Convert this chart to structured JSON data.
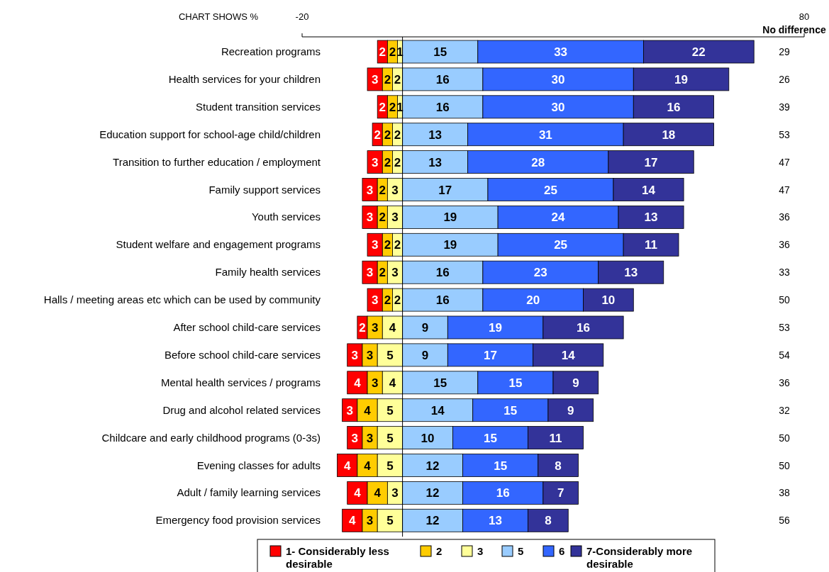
{
  "chart_data": {
    "type": "bar",
    "orientation": "horizontal",
    "data_labels": true,
    "legend": "bottom",
    "grid": false,
    "categories": [
      "Recreation programs",
      "Health services for your children",
      "Student transition services",
      "Education support for school-age child/children",
      "Transition to further education / employment",
      "Family support services",
      "Youth services",
      "Student welfare and engagement programs",
      "Family health services",
      "Halls / meeting areas etc which can be used by community",
      "After school child-care services",
      "Before school child-care services",
      "Mental health services / programs",
      "Drug and alcohol related services",
      "Childcare and early childhood programs (0-3s)",
      "Evening classes for adults",
      "Adult / family learning services",
      "Emergency food provision services"
    ],
    "xlim": [
      -20,
      80
    ],
    "xticks": [
      -20,
      80
    ],
    "series": [
      {
        "name": "1- Considerably less desirable",
        "color": "#ff0000",
        "values": [
          2,
          3,
          2,
          2,
          3,
          3,
          3,
          3,
          3,
          3,
          2,
          3,
          4,
          3,
          3,
          4,
          4,
          4
        ],
        "base": [
          -5,
          -7,
          -5,
          -6,
          -7,
          -8,
          -8,
          -7,
          -8,
          -7,
          -9,
          -11,
          -11,
          -12,
          -11,
          -13,
          -11,
          -12
        ]
      },
      {
        "name": "2",
        "color": "#ffcc00",
        "values": [
          2,
          2,
          2,
          2,
          2,
          2,
          2,
          2,
          2,
          2,
          3,
          3,
          3,
          4,
          3,
          4,
          4,
          3
        ],
        "base": [
          -3,
          -4,
          -3,
          -4,
          -4,
          -5,
          -5,
          -4,
          -5,
          -4,
          -7,
          -8,
          -7,
          -9,
          -8,
          -9,
          -7,
          -8
        ]
      },
      {
        "name": "3",
        "color": "#ffff99",
        "values": [
          1,
          2,
          1,
          2,
          2,
          3,
          3,
          2,
          3,
          2,
          4,
          5,
          4,
          5,
          5,
          5,
          3,
          5
        ],
        "base": [
          -1,
          -2,
          -1,
          -2,
          -2,
          -3,
          -3,
          -2,
          -3,
          -2,
          -4,
          -5,
          -4,
          -5,
          -5,
          -5,
          -3,
          -5
        ]
      },
      {
        "name": "5",
        "color": "#99ccff",
        "values": [
          15,
          16,
          16,
          13,
          13,
          17,
          19,
          19,
          16,
          16,
          9,
          9,
          15,
          14,
          10,
          12,
          12,
          12
        ],
        "base": [
          0,
          0,
          0,
          0,
          0,
          0,
          0,
          0,
          0,
          0,
          0,
          0,
          0,
          0,
          0,
          0,
          0,
          0
        ]
      },
      {
        "name": "6",
        "color": "#3366ff",
        "values": [
          33,
          30,
          30,
          31,
          28,
          25,
          24,
          25,
          23,
          20,
          19,
          17,
          15,
          15,
          15,
          15,
          16,
          13
        ],
        "base": [
          15,
          16,
          16,
          13,
          13,
          17,
          19,
          19,
          16,
          16,
          9,
          9,
          15,
          14,
          10,
          12,
          12,
          12
        ]
      },
      {
        "name": "7-Considerably more desirable",
        "color": "#333399",
        "values": [
          22,
          19,
          16,
          18,
          17,
          14,
          13,
          11,
          13,
          10,
          16,
          14,
          9,
          9,
          11,
          8,
          7,
          8
        ],
        "base": [
          48,
          46,
          46,
          44,
          41,
          42,
          43,
          44,
          39,
          36,
          28,
          26,
          30,
          29,
          25,
          27,
          28,
          25
        ]
      }
    ],
    "annotations": [
      "CHART SHOWS %",
      "No difference",
      "29",
      "26",
      "39",
      "53",
      "47",
      "47",
      "36",
      "36",
      "33",
      "50",
      "53",
      "54",
      "36",
      "32",
      "50",
      "50",
      "38",
      "56"
    ]
  }
}
